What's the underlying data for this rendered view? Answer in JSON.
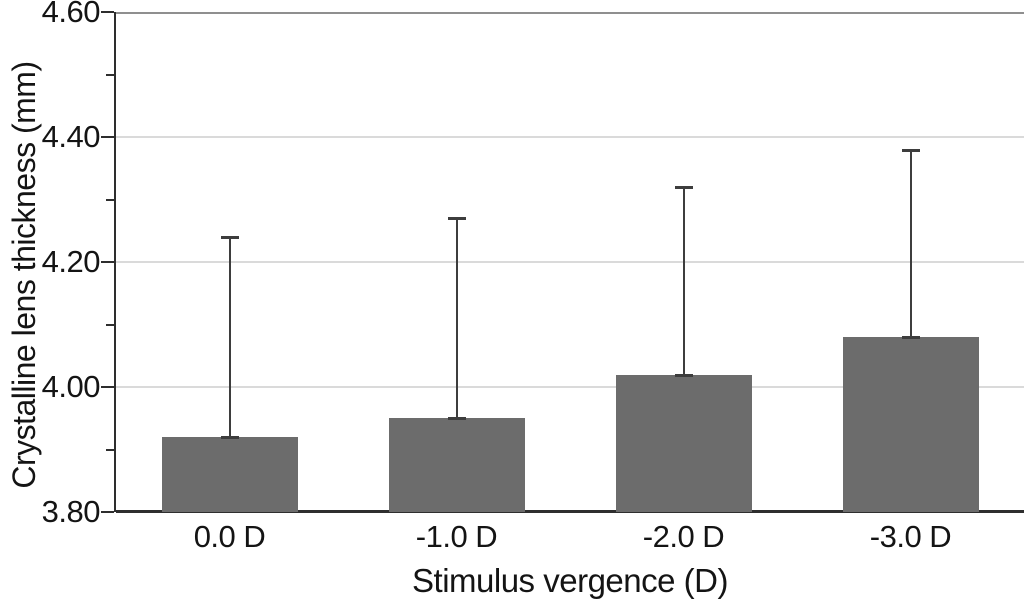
{
  "chart_data": {
    "type": "bar",
    "title": "",
    "xlabel": "Stimulus vergence (D)",
    "ylabel": "Crystalline lens thickness (mm)",
    "categories": [
      "0.0 D",
      "-1.0 D",
      "-2.0 D",
      "-3.0 D"
    ],
    "values": [
      3.92,
      3.95,
      4.02,
      4.08
    ],
    "error_upper_tops": [
      4.24,
      4.27,
      4.32,
      4.38
    ],
    "ylim": [
      3.8,
      4.6
    ],
    "ytick_values": [
      3.8,
      4.0,
      4.2,
      4.4,
      4.6
    ],
    "ytick_labels": [
      "3.80",
      "4.00",
      "4.20",
      "4.40",
      "4.60"
    ],
    "yminor_values": [
      3.9,
      4.1,
      4.3,
      4.5
    ],
    "grid": "horizontal-major-only",
    "legend": "none",
    "colors": {
      "background": "#ffffff",
      "bar": "#6c6c6c",
      "error_bar": "#3d3d3d",
      "axis": "#2e2e2e",
      "grid": "#dadada",
      "top_border": "#8f8f8f",
      "text": "#141414"
    }
  }
}
